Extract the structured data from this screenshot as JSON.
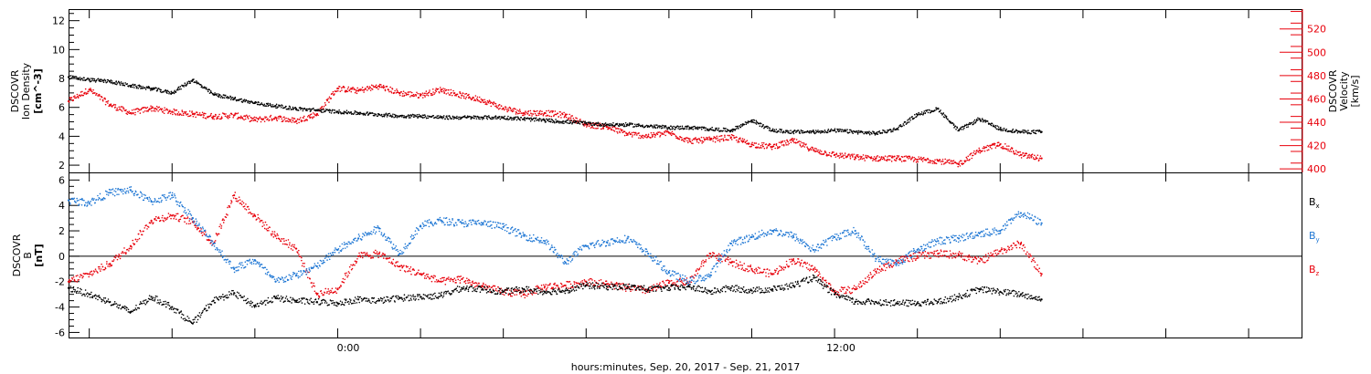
{
  "chart_data": [
    {
      "type": "scatter",
      "panel": "top",
      "ylabel_left": [
        "DSCOVR",
        "Ion Density",
        "[cm^-3]"
      ],
      "ylabel_right": [
        "DSCOVR",
        "Velocity",
        "[km/s]"
      ],
      "ylim_left": [
        1.5,
        12.8
      ],
      "yticks_left": [
        2,
        4,
        6,
        8,
        10,
        12
      ],
      "ylim_right": [
        397,
        537
      ],
      "yticks_right": [
        400,
        420,
        440,
        460,
        480,
        500,
        520
      ],
      "colors": {
        "density": "#000000",
        "velocity": "#e8000b"
      },
      "series": [
        {
          "name": "",
          "axis": "left",
          "color": "#000000",
          "x": [
            -6.5,
            -6,
            -5.5,
            -5,
            -4.5,
            -4,
            -3.5,
            -3,
            -2.5,
            -2,
            -1.5,
            -1,
            -0.5,
            0,
            0.5,
            1,
            1.5,
            2,
            2.5,
            3,
            3.5,
            4,
            4.5,
            5,
            5.5,
            6,
            6.5,
            7,
            7.5,
            8,
            8.5,
            9,
            9.5,
            10,
            10.5,
            11,
            11.5,
            12,
            12.5,
            13,
            13.5,
            14,
            14.5,
            15,
            15.5,
            16,
            16.5,
            17
          ],
          "y": [
            8.1,
            7.9,
            7.8,
            7.5,
            7.3,
            7.0,
            7.9,
            6.9,
            6.6,
            6.3,
            6.1,
            5.9,
            5.8,
            5.7,
            5.6,
            5.5,
            5.4,
            5.4,
            5.3,
            5.3,
            5.3,
            5.3,
            5.2,
            5.1,
            5.0,
            4.9,
            4.8,
            4.8,
            4.7,
            4.6,
            4.6,
            4.5,
            4.4,
            5.1,
            4.4,
            4.3,
            4.3,
            4.4,
            4.3,
            4.2,
            4.5,
            5.5,
            5.9,
            4.4,
            5.2,
            4.5,
            4.3,
            4.3
          ]
        },
        {
          "name": "",
          "axis": "right",
          "color": "#e8000b",
          "x": [
            -6.5,
            -6,
            -5.5,
            -5,
            -4.5,
            -4,
            -3.5,
            -3,
            -2.5,
            -2,
            -1.5,
            -1,
            -0.5,
            0,
            0.5,
            1,
            1.5,
            2,
            2.5,
            3,
            3.5,
            4,
            4.5,
            5,
            5.5,
            6,
            6.5,
            7,
            7.5,
            8,
            8.5,
            9,
            9.5,
            10,
            10.5,
            11,
            11.5,
            12,
            12.5,
            13,
            13.5,
            14,
            14.5,
            15,
            15.5,
            16,
            16.5,
            17
          ],
          "y": [
            458,
            468,
            455,
            448,
            452,
            449,
            447,
            445,
            446,
            442,
            444,
            441,
            447,
            469,
            467,
            471,
            465,
            463,
            468,
            463,
            459,
            452,
            448,
            448,
            446,
            438,
            436,
            430,
            428,
            431,
            424,
            425,
            427,
            421,
            419,
            424,
            416,
            412,
            410,
            409,
            409,
            408,
            407,
            404,
            416,
            421,
            412,
            409
          ]
        }
      ]
    },
    {
      "type": "scatter",
      "panel": "bottom",
      "ylabel_left": [
        "DSCOVR",
        "B",
        "[nT]"
      ],
      "ylim": [
        -6.4,
        6.6
      ],
      "yticks": [
        -6,
        -4,
        -2,
        0,
        2,
        4,
        6
      ],
      "xtick_labels": [
        "0:00",
        "12:00"
      ],
      "xtick_hours": [
        0,
        12
      ],
      "xlabel": "hours:minutes, Sep. 20, 2017 - Sep. 21, 2017",
      "xlim_hours": [
        -6.5,
        23.3
      ],
      "legend_placement": "right",
      "series": [
        {
          "name": "B",
          "sub": "x",
          "color": "#000000",
          "x": [
            -6.5,
            -6,
            -5.5,
            -5,
            -4.5,
            -4,
            -3.5,
            -3,
            -2.5,
            -2,
            -1.5,
            -1,
            -0.5,
            0,
            0.5,
            1,
            1.5,
            2,
            2.5,
            3,
            3.5,
            4,
            4.5,
            5,
            5.5,
            6,
            6.5,
            7,
            7.5,
            8,
            8.5,
            9,
            9.5,
            10,
            10.5,
            11,
            11.5,
            12,
            12.5,
            13,
            13.5,
            14,
            14.5,
            15,
            15.5,
            16,
            16.5,
            17
          ],
          "y": [
            -2.5,
            -3.0,
            -3.6,
            -4.4,
            -3.2,
            -4.0,
            -5.3,
            -3.5,
            -2.9,
            -3.9,
            -3.3,
            -3.5,
            -3.6,
            -3.7,
            -3.4,
            -3.5,
            -3.3,
            -3.2,
            -3.1,
            -2.5,
            -2.6,
            -2.8,
            -2.6,
            -2.8,
            -2.7,
            -2.3,
            -2.4,
            -2.4,
            -2.6,
            -2.5,
            -2.4,
            -2.8,
            -2.5,
            -2.7,
            -2.6,
            -2.3,
            -1.7,
            -3.0,
            -3.6,
            -3.6,
            -3.7,
            -3.7,
            -3.6,
            -3.2,
            -2.6,
            -2.8,
            -3.0,
            -3.4
          ]
        },
        {
          "name": "B",
          "sub": "y",
          "color": "#1f77d4",
          "x": [
            -6.5,
            -6,
            -5.5,
            -5,
            -4.5,
            -4,
            -3.5,
            -3,
            -2.5,
            -2,
            -1.5,
            -1,
            -0.5,
            0,
            0.5,
            1,
            1.5,
            2,
            2.5,
            3,
            3.5,
            4,
            4.5,
            5,
            5.5,
            6,
            6.5,
            7,
            7.5,
            8,
            8.5,
            9,
            9.5,
            10,
            10.5,
            11,
            11.5,
            12,
            12.5,
            13,
            13.5,
            14,
            14.5,
            15,
            15.5,
            16,
            16.5,
            17
          ],
          "y": [
            4.4,
            4.2,
            5.0,
            5.2,
            4.3,
            4.8,
            3.0,
            1.0,
            -1.0,
            -0.3,
            -2.0,
            -1.5,
            -0.8,
            0.5,
            1.4,
            2.2,
            0.2,
            2.4,
            2.8,
            2.6,
            2.6,
            2.3,
            1.6,
            1.2,
            -0.5,
            0.8,
            1.1,
            1.4,
            0.2,
            -1.3,
            -2.0,
            -1.5,
            1.0,
            1.5,
            2.0,
            1.6,
            0.5,
            1.5,
            2.0,
            -0.2,
            -0.6,
            0.5,
            1.2,
            1.4,
            1.8,
            2.0,
            3.4,
            2.6
          ]
        },
        {
          "name": "B",
          "sub": "z",
          "color": "#e8000b",
          "x": [
            -6.5,
            -6,
            -5.5,
            -5,
            -4.5,
            -4,
            -3.5,
            -3,
            -2.5,
            -2,
            -1.5,
            -1,
            -0.5,
            0,
            0.5,
            1,
            1.5,
            2,
            2.5,
            3,
            3.5,
            4,
            4.5,
            5,
            5.5,
            6,
            6.5,
            7,
            7.5,
            8,
            8.5,
            9,
            9.5,
            10,
            10.5,
            11,
            11.5,
            12,
            12.5,
            13,
            13.5,
            14,
            14.5,
            15,
            15.5,
            16,
            16.5,
            17
          ],
          "y": [
            -2.0,
            -1.4,
            -0.6,
            0.8,
            2.8,
            3.2,
            2.7,
            1.0,
            4.8,
            3.2,
            1.6,
            0.6,
            -3.0,
            -2.6,
            0.0,
            0.2,
            -0.8,
            -1.4,
            -2.0,
            -1.8,
            -2.4,
            -2.8,
            -3.0,
            -2.4,
            -2.3,
            -2.0,
            -2.2,
            -2.5,
            -2.7,
            -2.1,
            -2.0,
            0.2,
            -0.5,
            -1.0,
            -1.4,
            -0.3,
            -1.0,
            -2.8,
            -2.6,
            -1.2,
            -0.4,
            0.0,
            0.2,
            0.1,
            -0.4,
            0.4,
            1.0,
            -1.4
          ]
        }
      ]
    }
  ]
}
